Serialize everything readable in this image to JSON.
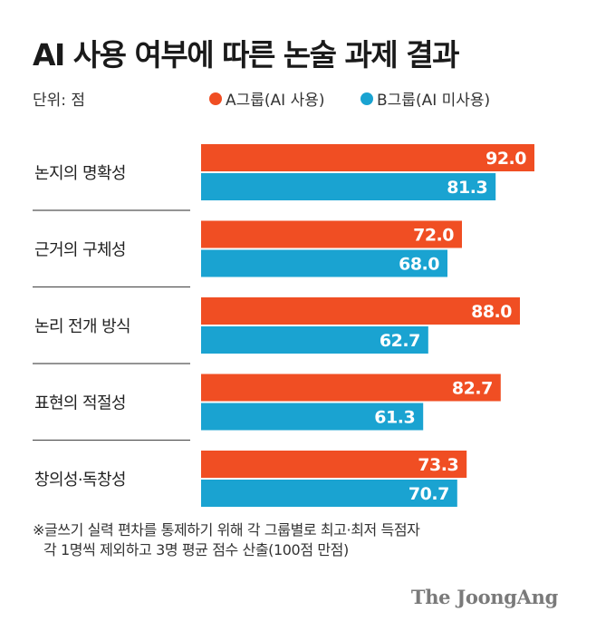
{
  "header": {
    "title": "AI 사용 여부에 따른 논술 과제 결과",
    "unit": "단위: 점"
  },
  "legend": {
    "a_label": "A그룹(AI 사용)",
    "b_label": "B그룹(AI 미사용)"
  },
  "colors": {
    "a": "#f04e23",
    "b": "#1aa3d1",
    "divider": "#555555"
  },
  "chart_data": {
    "type": "bar",
    "orientation": "horizontal",
    "categories": [
      "논지의 명확성",
      "근거의 구체성",
      "논리 전개 방식",
      "표현의 적절성",
      "창의성·독창성"
    ],
    "series": [
      {
        "name": "A그룹(AI 사용)",
        "values": [
          "92.0",
          "72.0",
          "88.0",
          "82.7",
          "73.3"
        ]
      },
      {
        "name": "B그룹(AI 미사용)",
        "values": [
          "81.3",
          "68.0",
          "62.7",
          "61.3",
          "70.7"
        ]
      }
    ],
    "xlim": [
      0,
      100
    ]
  },
  "footnote": {
    "line1": "※글쓰기 실력 편차를 통제하기 위해 각 그룹별로 최고·최저 득점자",
    "line2": "각 1명씩 제외하고 3명 평균 점수 산출(100점 만점)"
  },
  "brand": "The JoongAng"
}
